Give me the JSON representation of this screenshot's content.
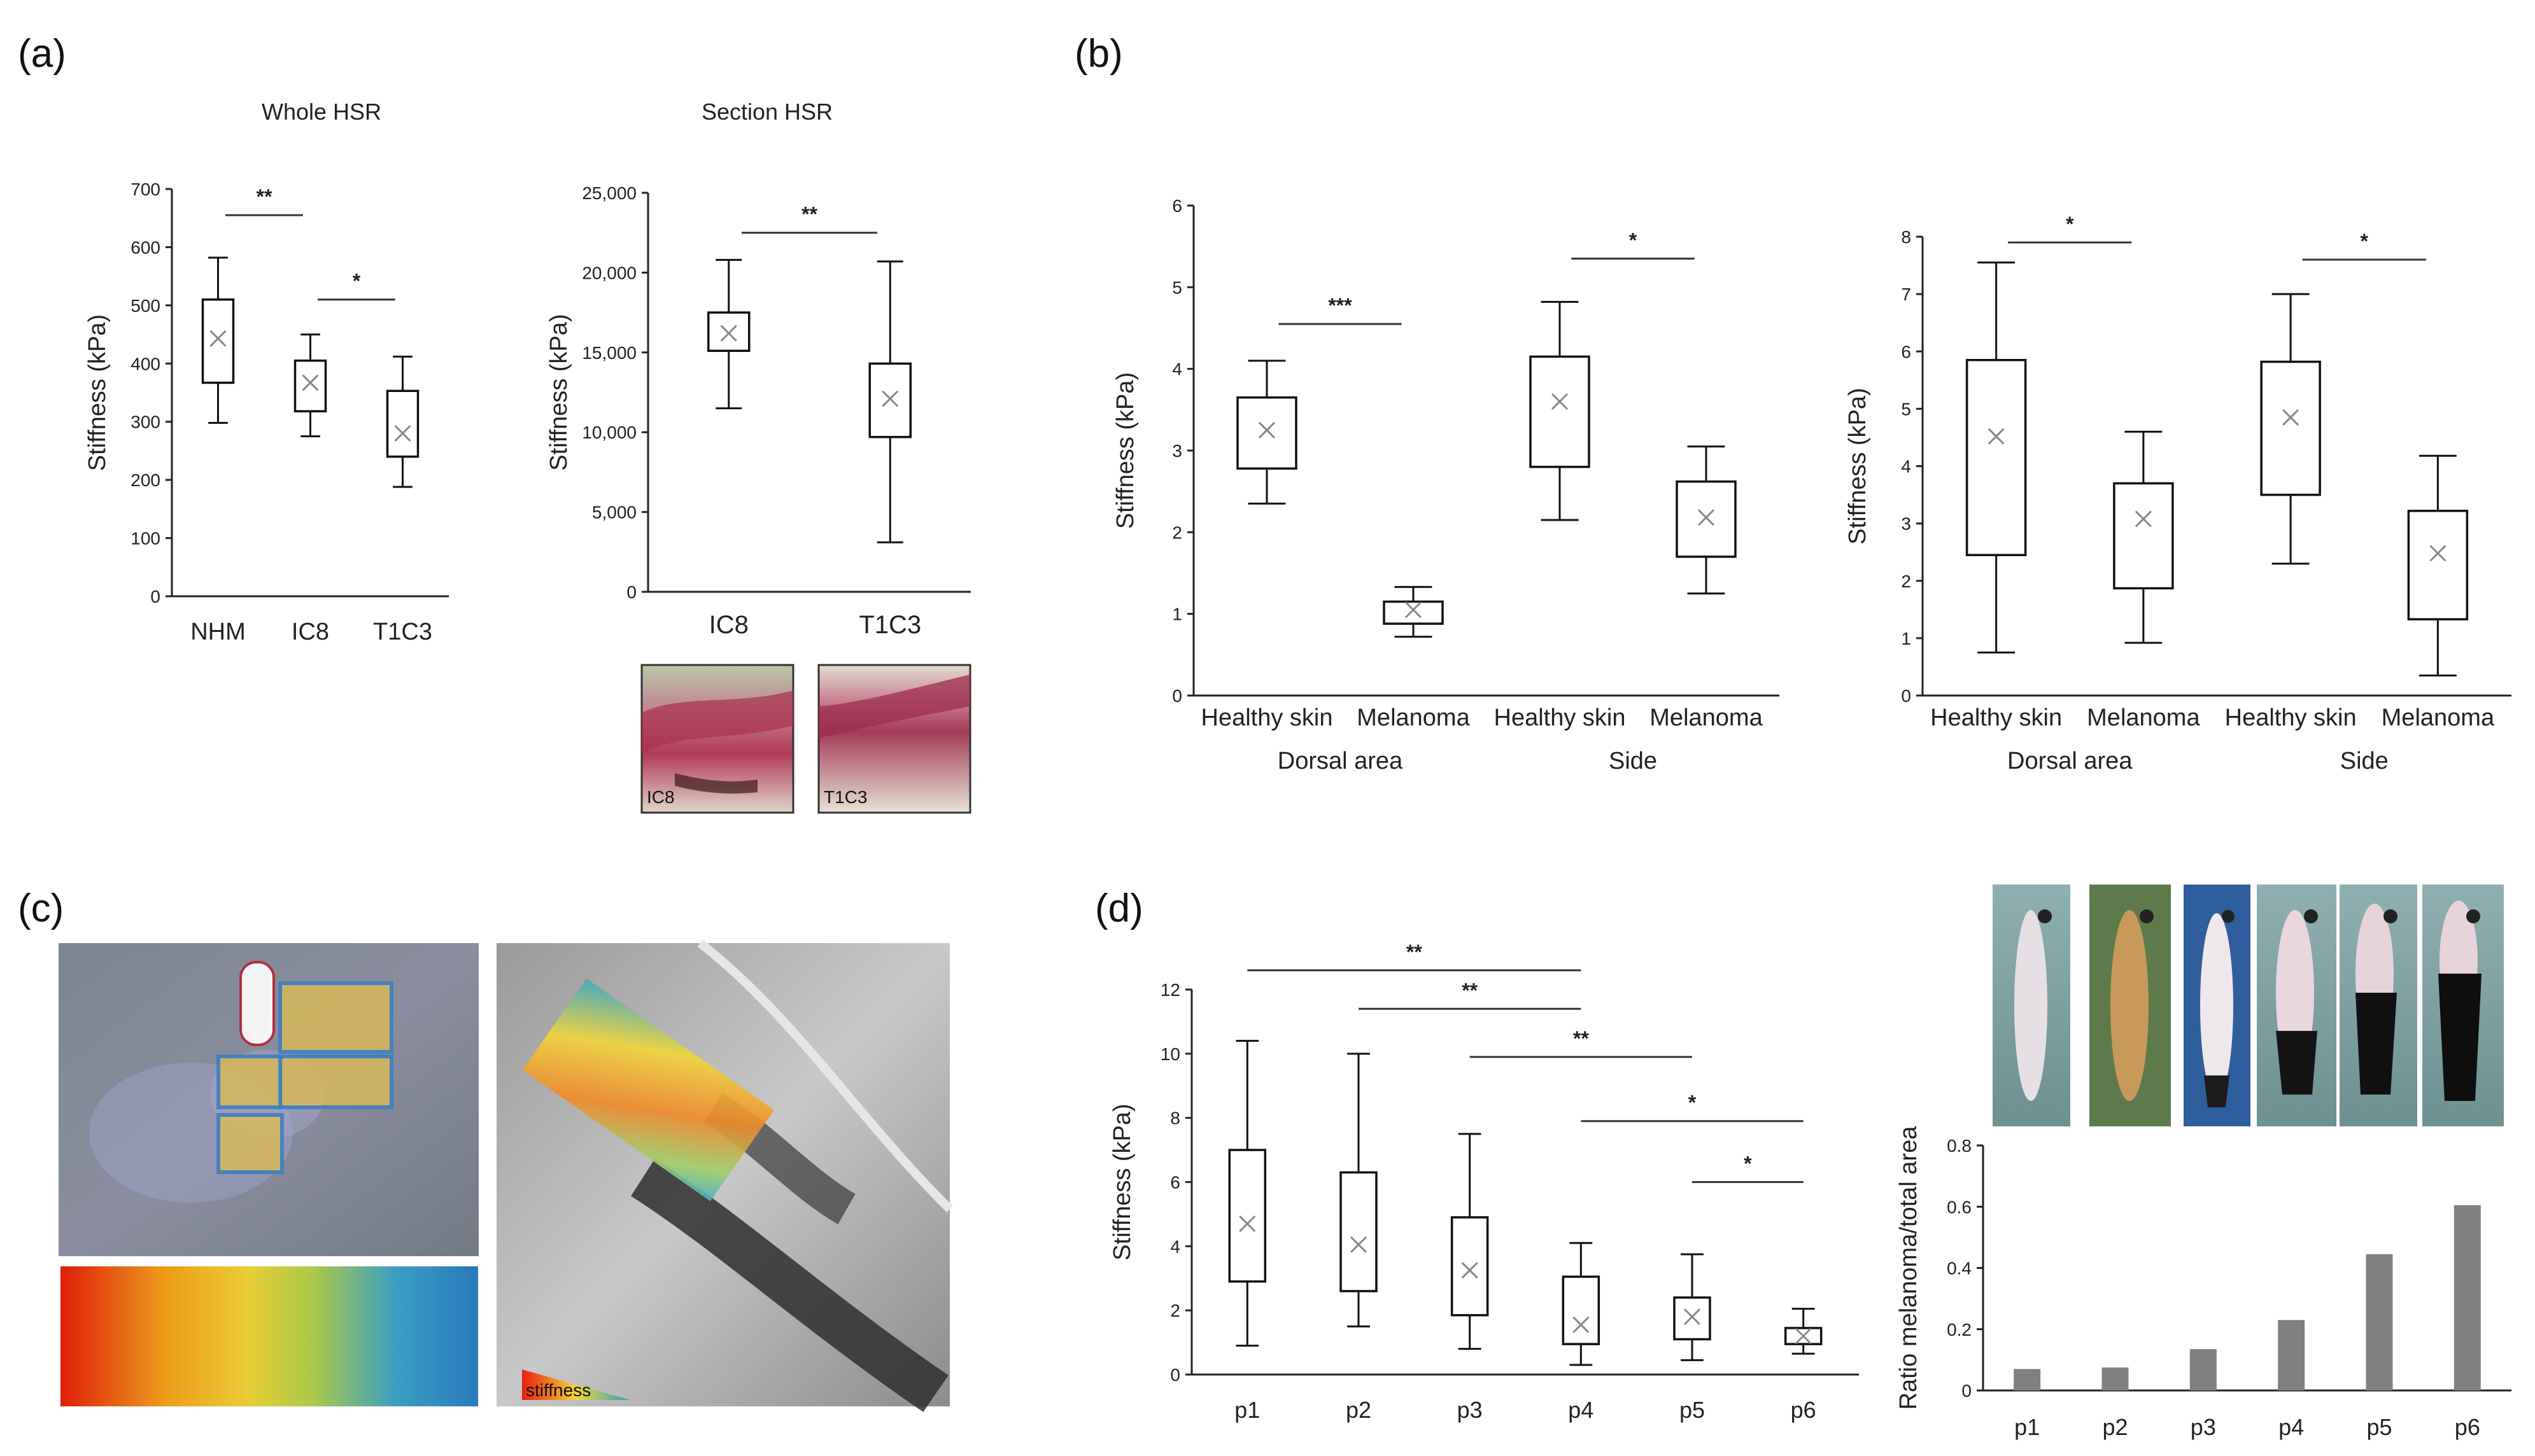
{
  "panels": {
    "a": "(a)",
    "b": "(b)",
    "c": "(c)",
    "d": "(d)"
  },
  "micrograph_labels": {
    "ic8": "IC8",
    "t1c3": "T1C3"
  },
  "stiffness_bar_label": "stiffness",
  "colors": {
    "box_stroke": "#111111",
    "bar_fill": "#808080",
    "mean_marker": "#888888"
  },
  "chart_data": [
    {
      "id": "a1",
      "type": "boxplot",
      "title": "Whole HSR",
      "ylabel": "Stiffness (kPa)",
      "ylim": [
        0,
        700
      ],
      "yticks": [
        "0",
        "100",
        "200",
        "300",
        "400",
        "500",
        "600",
        "700"
      ],
      "ytick_values": [
        0,
        100,
        200,
        300,
        400,
        500,
        600,
        700
      ],
      "categories": [
        "NHM",
        "IC8",
        "T1C3"
      ],
      "boxes": [
        {
          "min": 298,
          "q1": 367,
          "median": 367,
          "q3": 510,
          "max": 582,
          "mean": 443
        },
        {
          "min": 275,
          "q1": 318,
          "median": 318,
          "q3": 405,
          "max": 450,
          "mean": 367
        },
        {
          "min": 188,
          "q1": 240,
          "median": 240,
          "q3": 353,
          "max": 412,
          "mean": 280
        }
      ],
      "significance": [
        {
          "from": 0,
          "to": 1,
          "label": "**",
          "y": 655
        },
        {
          "from": 1,
          "to": 2,
          "label": "*",
          "y": 510
        }
      ]
    },
    {
      "id": "a2",
      "type": "boxplot",
      "title": "Section HSR",
      "ylabel": "Stiffness (kPa)",
      "ylim": [
        0,
        25000
      ],
      "yticks": [
        "0",
        "5,000",
        "10,000",
        "15,000",
        "20,000",
        "25,000"
      ],
      "ytick_values": [
        0,
        5000,
        10000,
        15000,
        20000,
        25000
      ],
      "categories": [
        "IC8",
        "T1C3"
      ],
      "boxes": [
        {
          "min": 11500,
          "q1": 15100,
          "median": 15100,
          "q3": 17500,
          "max": 20800,
          "mean": 16200
        },
        {
          "min": 3100,
          "q1": 9700,
          "median": 9700,
          "q3": 14300,
          "max": 20700,
          "mean": 12100
        }
      ],
      "significance": [
        {
          "from": 0,
          "to": 1,
          "label": "**",
          "y": 22500
        }
      ]
    },
    {
      "id": "b1",
      "type": "boxplot",
      "title": "",
      "ylabel": "Stiffness (kPa)",
      "ylim": [
        0,
        6
      ],
      "yticks": [
        "0",
        "1",
        "2",
        "3",
        "4",
        "5",
        "6"
      ],
      "ytick_values": [
        0,
        1,
        2,
        3,
        4,
        5,
        6
      ],
      "categories": [
        "Healthy skin",
        "Melanoma",
        "Healthy skin",
        "Melanoma"
      ],
      "groups": [
        {
          "label": "Dorsal area",
          "span": [
            0,
            1
          ]
        },
        {
          "label": "Side",
          "span": [
            2,
            3
          ]
        }
      ],
      "boxes": [
        {
          "min": 2.35,
          "q1": 2.78,
          "median": 2.78,
          "q3": 3.65,
          "max": 4.1,
          "mean": 3.25
        },
        {
          "min": 0.72,
          "q1": 0.88,
          "median": 0.88,
          "q3": 1.15,
          "max": 1.33,
          "mean": 1.05
        },
        {
          "min": 2.15,
          "q1": 2.8,
          "median": 2.8,
          "q3": 4.15,
          "max": 4.82,
          "mean": 3.6
        },
        {
          "min": 1.25,
          "q1": 1.7,
          "median": 1.7,
          "q3": 2.62,
          "max": 3.05,
          "mean": 2.18
        }
      ],
      "significance": [
        {
          "from": 0,
          "to": 1,
          "label": "***",
          "y": 4.55
        },
        {
          "from": 2,
          "to": 3,
          "label": "*",
          "y": 5.35
        }
      ]
    },
    {
      "id": "b2",
      "type": "boxplot",
      "title": "",
      "ylabel": "Stiffness (kPa)",
      "ylim": [
        0,
        8
      ],
      "yticks": [
        "0",
        "1",
        "2",
        "3",
        "4",
        "5",
        "6",
        "7",
        "8"
      ],
      "ytick_values": [
        0,
        1,
        2,
        3,
        4,
        5,
        6,
        7,
        8
      ],
      "categories": [
        "Healthy skin",
        "Melanoma",
        "Healthy skin",
        "Melanoma"
      ],
      "groups": [
        {
          "label": "Dorsal area",
          "span": [
            0,
            1
          ]
        },
        {
          "label": "Side",
          "span": [
            2,
            3
          ]
        }
      ],
      "boxes": [
        {
          "min": 0.75,
          "q1": 2.45,
          "median": 2.45,
          "q3": 5.85,
          "max": 7.55,
          "mean": 4.52
        },
        {
          "min": 0.92,
          "q1": 1.87,
          "median": 1.87,
          "q3": 3.7,
          "max": 4.6,
          "mean": 3.08
        },
        {
          "min": 2.3,
          "q1": 3.5,
          "median": 3.5,
          "q3": 5.82,
          "max": 7.0,
          "mean": 4.85
        },
        {
          "min": 0.35,
          "q1": 1.33,
          "median": 1.33,
          "q3": 3.22,
          "max": 4.18,
          "mean": 2.48
        }
      ],
      "significance": [
        {
          "from": 0,
          "to": 1,
          "label": "*",
          "y": 7.9
        },
        {
          "from": 2,
          "to": 3,
          "label": "*",
          "y": 7.6
        }
      ]
    },
    {
      "id": "d1",
      "type": "boxplot",
      "title": "",
      "ylabel": "Stiffness (kPa)",
      "ylim": [
        0,
        12
      ],
      "yticks": [
        "0",
        "2",
        "4",
        "6",
        "8",
        "10",
        "12"
      ],
      "ytick_values": [
        0,
        2,
        4,
        6,
        8,
        10,
        12
      ],
      "categories": [
        "p1",
        "p2",
        "p3",
        "p4",
        "p5",
        "p6"
      ],
      "boxes": [
        {
          "min": 0.9,
          "q1": 2.9,
          "median": 2.9,
          "q3": 7.0,
          "max": 10.4,
          "mean": 4.7
        },
        {
          "min": 1.5,
          "q1": 2.6,
          "median": 2.6,
          "q3": 6.3,
          "max": 10.0,
          "mean": 4.05
        },
        {
          "min": 0.8,
          "q1": 1.85,
          "median": 1.85,
          "q3": 4.9,
          "max": 7.5,
          "mean": 3.25
        },
        {
          "min": 0.3,
          "q1": 0.95,
          "median": 0.95,
          "q3": 3.05,
          "max": 4.1,
          "mean": 1.55
        },
        {
          "min": 0.45,
          "q1": 1.1,
          "median": 1.1,
          "q3": 2.4,
          "max": 3.75,
          "mean": 1.8
        },
        {
          "min": 0.65,
          "q1": 0.95,
          "median": 0.95,
          "q3": 1.45,
          "max": 2.05,
          "mean": 1.2
        }
      ],
      "significance": [
        {
          "from": 0,
          "to": 3,
          "label": "**",
          "y": 12.6
        },
        {
          "from": 1,
          "to": 3,
          "label": "**",
          "y": 11.4
        },
        {
          "from": 2,
          "to": 4,
          "label": "**",
          "y": 9.9
        },
        {
          "from": 3,
          "to": 5,
          "label": "*",
          "y": 7.9
        },
        {
          "from": 4,
          "to": 5,
          "label": "*",
          "y": 6.0
        }
      ]
    },
    {
      "id": "d2",
      "type": "bar",
      "title": "",
      "ylabel": "Ratio melanoma/total area",
      "ylim": [
        0,
        0.8
      ],
      "yticks": [
        "0",
        "0.2",
        "0.4",
        "0.6",
        "0.8"
      ],
      "ytick_values": [
        0,
        0.2,
        0.4,
        0.6,
        0.8
      ],
      "categories": [
        "p1",
        "p2",
        "p3",
        "p4",
        "p5",
        "p6"
      ],
      "values": [
        0.07,
        0.075,
        0.135,
        0.23,
        0.445,
        0.605
      ]
    }
  ]
}
